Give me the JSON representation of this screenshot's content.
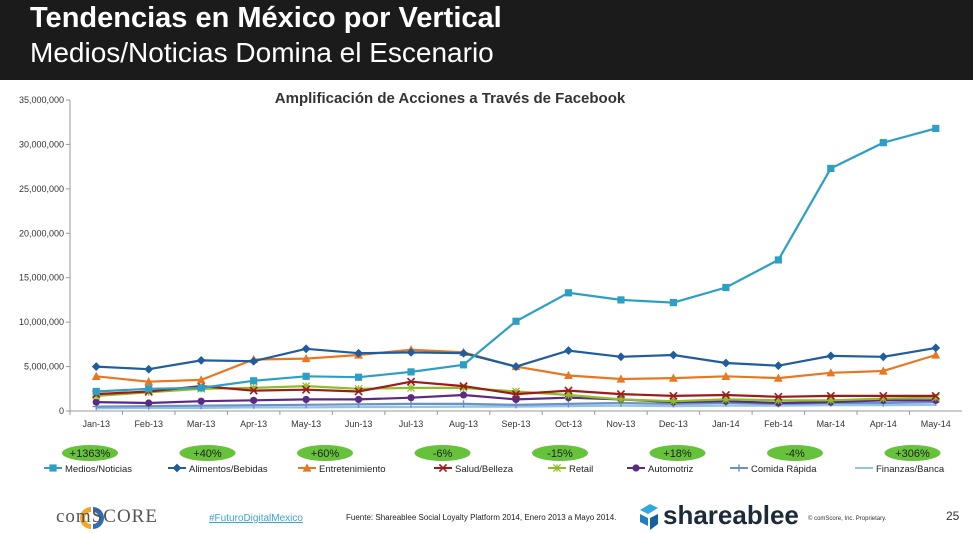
{
  "header": {
    "title": "Tendencias en México por Vertical",
    "subtitle": "Medios/Noticias Domina el Escenario"
  },
  "chart_data": {
    "type": "line",
    "title": "Amplificación de Acciones a Través de Facebook",
    "xlabel": "",
    "ylabel": "",
    "ylim": [
      0,
      35000000
    ],
    "yticks": [
      "0",
      "5,000,000",
      "10,000,000",
      "15,000,000",
      "20,000,000",
      "25,000,000",
      "30,000,000",
      "35,000,000"
    ],
    "categories": [
      "Jan-13",
      "Feb-13",
      "Mar-13",
      "Apr-13",
      "May-13",
      "Jun-13",
      "Jul-13",
      "Aug-13",
      "Sep-13",
      "Oct-13",
      "Nov-13",
      "Dec-13",
      "Jan-14",
      "Feb-14",
      "Mar-14",
      "Apr-14",
      "May-14"
    ],
    "grid": false,
    "legend": "bottom",
    "growth_badges": [
      "+1363%",
      "+40%",
      "+60%",
      "-6%",
      "-15%",
      "+18%",
      "-4%",
      "+306%"
    ],
    "series": [
      {
        "name": "Medios/Noticias",
        "color": "#2e9fc4",
        "marker": "square",
        "values": [
          2200000,
          2500000,
          2600000,
          3400000,
          3900000,
          3800000,
          4400000,
          5200000,
          10100000,
          13300000,
          12500000,
          12200000,
          13900000,
          17000000,
          27300000,
          30200000,
          31800000
        ]
      },
      {
        "name": "Alimentos/Bebidas",
        "color": "#1f5d9e",
        "marker": "diamond",
        "values": [
          5000000,
          4700000,
          5700000,
          5600000,
          7000000,
          6500000,
          6600000,
          6500000,
          5000000,
          6800000,
          6100000,
          6300000,
          5400000,
          5100000,
          6200000,
          6100000,
          7100000
        ]
      },
      {
        "name": "Entretenimiento",
        "color": "#e87722",
        "marker": "triangle",
        "values": [
          3900000,
          3300000,
          3500000,
          5800000,
          5900000,
          6300000,
          6900000,
          6600000,
          5000000,
          4000000,
          3600000,
          3700000,
          3900000,
          3700000,
          4300000,
          4500000,
          6300000
        ]
      },
      {
        "name": "Salud/Belleza",
        "color": "#9e1b1b",
        "marker": "x",
        "values": [
          1900000,
          2200000,
          2800000,
          2300000,
          2400000,
          2200000,
          3300000,
          2800000,
          1900000,
          2300000,
          1900000,
          1700000,
          1800000,
          1600000,
          1700000,
          1700000,
          1700000
        ]
      },
      {
        "name": "Retail",
        "color": "#8cbf26",
        "marker": "star",
        "values": [
          1700000,
          2100000,
          2500000,
          2600000,
          2800000,
          2500000,
          2600000,
          2600000,
          2200000,
          1800000,
          1300000,
          1100000,
          1300000,
          1200000,
          1200000,
          1400000,
          1500000
        ]
      },
      {
        "name": "Automotriz",
        "color": "#5b2a82",
        "marker": "circle",
        "values": [
          1000000,
          900000,
          1100000,
          1200000,
          1300000,
          1300000,
          1500000,
          1800000,
          1300000,
          1500000,
          1300000,
          1000000,
          1100000,
          900000,
          1000000,
          1200000,
          1200000
        ]
      },
      {
        "name": "Comida Rápida",
        "color": "#6f8fc9",
        "marker": "plus",
        "values": [
          500000,
          550000,
          600000,
          650000,
          700000,
          750000,
          800000,
          800000,
          700000,
          800000,
          900000,
          800000,
          900000,
          800000,
          900000,
          900000,
          1000000
        ]
      },
      {
        "name": "Finanzas/Banca",
        "color": "#8ec6e6",
        "marker": "none",
        "values": [
          300000,
          350000,
          350000,
          400000,
          400000,
          450000,
          450000,
          500000,
          500000,
          550000,
          600000,
          550000,
          600000,
          600000,
          650000,
          650000,
          700000
        ]
      }
    ]
  },
  "footer": {
    "brand": "comSCORE",
    "hashtag": "#FuturoDigitalMexico",
    "source": "Fuente: Shareablee Social Loyalty Platform 2014, Enero 2013 a Mayo 2014.",
    "partner": "shareablee",
    "copyright": "© comScore, Inc. Proprietary.",
    "page": "25"
  }
}
